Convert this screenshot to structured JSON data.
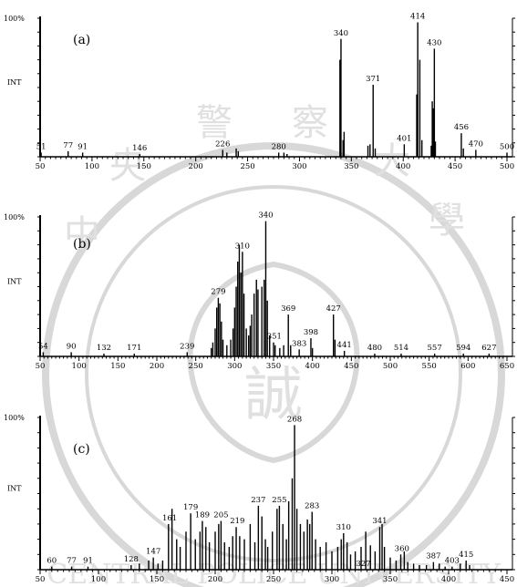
{
  "watermark": {
    "chars": [
      "中",
      "央",
      "警",
      "察",
      "大",
      "學"
    ],
    "center_glyph": "誠",
    "ring_text": "CENTRAL POLICE UNIVERSITY",
    "color": "#d8d8d8"
  },
  "chart_data": [
    {
      "type": "bar",
      "panel_label": "(a)",
      "ytop_label": "100%",
      "ymid_label": "INT",
      "xlim": [
        50,
        500
      ],
      "ylim": [
        0,
        100
      ],
      "xticks": [
        "50",
        "100",
        "150",
        "200",
        "250",
        "300",
        "350",
        "400",
        "450",
        "500"
      ],
      "peaks": [
        [
          51,
          3
        ],
        [
          77,
          4
        ],
        [
          91,
          3
        ],
        [
          146,
          2
        ],
        [
          226,
          5
        ],
        [
          230,
          3
        ],
        [
          239,
          6
        ],
        [
          241,
          4
        ],
        [
          280,
          3
        ],
        [
          285,
          3
        ],
        [
          288,
          2
        ],
        [
          339,
          70
        ],
        [
          340,
          85
        ],
        [
          342,
          12
        ],
        [
          343,
          18
        ],
        [
          366,
          8
        ],
        [
          368,
          9
        ],
        [
          371,
          52
        ],
        [
          373,
          6
        ],
        [
          401,
          9
        ],
        [
          413,
          45
        ],
        [
          414,
          97
        ],
        [
          416,
          70
        ],
        [
          418,
          12
        ],
        [
          427,
          8
        ],
        [
          428,
          40
        ],
        [
          429,
          35
        ],
        [
          430,
          78
        ],
        [
          431,
          11
        ],
        [
          456,
          17
        ],
        [
          458,
          6
        ],
        [
          470,
          5
        ],
        [
          500,
          3
        ]
      ],
      "labels": [
        {
          "x": 51,
          "text": "51"
        },
        {
          "x": 77,
          "text": "77"
        },
        {
          "x": 91,
          "text": "91"
        },
        {
          "x": 146,
          "text": "146"
        },
        {
          "x": 226,
          "text": "226"
        },
        {
          "x": 280,
          "text": "280"
        },
        {
          "x": 340,
          "text": "340"
        },
        {
          "x": 371,
          "text": "371"
        },
        {
          "x": 401,
          "text": "401"
        },
        {
          "x": 414,
          "text": "414"
        },
        {
          "x": 430,
          "text": "430"
        },
        {
          "x": 456,
          "text": "456"
        },
        {
          "x": 470,
          "text": "470"
        },
        {
          "x": 500,
          "text": "500"
        }
      ]
    },
    {
      "type": "bar",
      "panel_label": "(b)",
      "ytop_label": "100%",
      "ymid_label": "INT",
      "xlim": [
        50,
        650
      ],
      "ylim": [
        0,
        100
      ],
      "xticks": [
        "50",
        "100",
        "150",
        "200",
        "250",
        "300",
        "350",
        "400",
        "450",
        "500",
        "550",
        "600",
        "650"
      ],
      "peaks": [
        [
          54,
          3
        ],
        [
          90,
          3
        ],
        [
          132,
          2
        ],
        [
          171,
          2
        ],
        [
          239,
          3
        ],
        [
          270,
          6
        ],
        [
          272,
          10
        ],
        [
          275,
          20
        ],
        [
          277,
          35
        ],
        [
          279,
          42
        ],
        [
          281,
          38
        ],
        [
          283,
          25
        ],
        [
          285,
          12
        ],
        [
          290,
          8
        ],
        [
          295,
          12
        ],
        [
          298,
          20
        ],
        [
          300,
          35
        ],
        [
          302,
          50
        ],
        [
          304,
          68
        ],
        [
          306,
          80
        ],
        [
          308,
          60
        ],
        [
          310,
          75
        ],
        [
          312,
          45
        ],
        [
          315,
          20
        ],
        [
          318,
          15
        ],
        [
          320,
          22
        ],
        [
          322,
          30
        ],
        [
          325,
          45
        ],
        [
          328,
          55
        ],
        [
          330,
          48
        ],
        [
          335,
          50
        ],
        [
          338,
          55
        ],
        [
          340,
          97
        ],
        [
          342,
          40
        ],
        [
          345,
          15
        ],
        [
          350,
          10
        ],
        [
          352,
          8
        ],
        [
          358,
          6
        ],
        [
          363,
          8
        ],
        [
          369,
          30
        ],
        [
          372,
          8
        ],
        [
          383,
          5
        ],
        [
          398,
          13
        ],
        [
          400,
          6
        ],
        [
          427,
          30
        ],
        [
          429,
          12
        ],
        [
          441,
          4
        ],
        [
          480,
          2
        ],
        [
          514,
          2
        ],
        [
          557,
          2
        ],
        [
          594,
          2
        ],
        [
          627,
          2
        ]
      ],
      "labels": [
        {
          "x": 54,
          "text": "54"
        },
        {
          "x": 90,
          "text": "90"
        },
        {
          "x": 132,
          "text": "132"
        },
        {
          "x": 171,
          "text": "171"
        },
        {
          "x": 239,
          "text": "239"
        },
        {
          "x": 279,
          "text": "279"
        },
        {
          "x": 310,
          "text": "310"
        },
        {
          "x": 340,
          "text": "340"
        },
        {
          "x": 351,
          "text": "351"
        },
        {
          "x": 369,
          "text": "369"
        },
        {
          "x": 383,
          "text": "383"
        },
        {
          "x": 398,
          "text": "398"
        },
        {
          "x": 427,
          "text": "427"
        },
        {
          "x": 441,
          "text": "441"
        },
        {
          "x": 480,
          "text": "480"
        },
        {
          "x": 514,
          "text": "514"
        },
        {
          "x": 557,
          "text": "557"
        },
        {
          "x": 594,
          "text": "594"
        },
        {
          "x": 627,
          "text": "627"
        }
      ]
    },
    {
      "type": "bar",
      "panel_label": "(c)",
      "ytop_label": "100%",
      "ymid_label": "INT",
      "xlim": [
        50,
        450
      ],
      "ylim": [
        0,
        100
      ],
      "xticks": [
        "50",
        "100",
        "150",
        "200",
        "250",
        "300",
        "350",
        "400",
        "450"
      ],
      "peaks": [
        [
          60,
          2
        ],
        [
          77,
          2
        ],
        [
          91,
          2
        ],
        [
          128,
          3
        ],
        [
          135,
          4
        ],
        [
          143,
          6
        ],
        [
          147,
          8
        ],
        [
          151,
          4
        ],
        [
          155,
          6
        ],
        [
          160,
          30
        ],
        [
          163,
          40
        ],
        [
          167,
          20
        ],
        [
          170,
          15
        ],
        [
          175,
          25
        ],
        [
          179,
          37
        ],
        [
          183,
          20
        ],
        [
          187,
          25
        ],
        [
          189,
          32
        ],
        [
          192,
          28
        ],
        [
          195,
          18
        ],
        [
          200,
          25
        ],
        [
          203,
          30
        ],
        [
          205,
          32
        ],
        [
          208,
          18
        ],
        [
          212,
          15
        ],
        [
          215,
          22
        ],
        [
          218,
          28
        ],
        [
          221,
          22
        ],
        [
          225,
          20
        ],
        [
          230,
          30
        ],
        [
          234,
          18
        ],
        [
          237,
          42
        ],
        [
          240,
          35
        ],
        [
          243,
          20
        ],
        [
          245,
          15
        ],
        [
          249,
          25
        ],
        [
          253,
          40
        ],
        [
          255,
          42
        ],
        [
          258,
          30
        ],
        [
          261,
          20
        ],
        [
          263,
          45
        ],
        [
          266,
          60
        ],
        [
          268,
          95
        ],
        [
          270,
          40
        ],
        [
          273,
          30
        ],
        [
          276,
          25
        ],
        [
          279,
          33
        ],
        [
          281,
          30
        ],
        [
          283,
          38
        ],
        [
          286,
          20
        ],
        [
          290,
          15
        ],
        [
          295,
          18
        ],
        [
          300,
          12
        ],
        [
          305,
          15
        ],
        [
          308,
          20
        ],
        [
          310,
          24
        ],
        [
          313,
          18
        ],
        [
          316,
          10
        ],
        [
          320,
          12
        ],
        [
          325,
          15
        ],
        [
          329,
          25
        ],
        [
          333,
          16
        ],
        [
          337,
          12
        ],
        [
          341,
          28
        ],
        [
          343,
          30
        ],
        [
          345,
          15
        ],
        [
          350,
          8
        ],
        [
          355,
          6
        ],
        [
          359,
          10
        ],
        [
          362,
          12
        ],
        [
          365,
          5
        ],
        [
          370,
          4
        ],
        [
          375,
          3
        ],
        [
          381,
          3
        ],
        [
          387,
          5
        ],
        [
          392,
          4
        ],
        [
          397,
          2
        ],
        [
          403,
          2
        ],
        [
          410,
          4
        ],
        [
          415,
          6
        ],
        [
          418,
          3
        ]
      ],
      "labels": [
        {
          "x": 60,
          "text": "60"
        },
        {
          "x": 77,
          "text": "77"
        },
        {
          "x": 91,
          "text": "91"
        },
        {
          "x": 128,
          "text": "128"
        },
        {
          "x": 147,
          "text": "147"
        },
        {
          "x": 161,
          "text": "161"
        },
        {
          "x": 179,
          "text": "179"
        },
        {
          "x": 189,
          "text": "189"
        },
        {
          "x": 205,
          "text": "205"
        },
        {
          "x": 219,
          "text": "219"
        },
        {
          "x": 237,
          "text": "237"
        },
        {
          "x": 255,
          "text": "255"
        },
        {
          "x": 268,
          "text": "268"
        },
        {
          "x": 283,
          "text": "283"
        },
        {
          "x": 310,
          "text": "310"
        },
        {
          "x": 327,
          "text": "327"
        },
        {
          "x": 341,
          "text": "341"
        },
        {
          "x": 360,
          "text": "360"
        },
        {
          "x": 387,
          "text": "387"
        },
        {
          "x": 403,
          "text": "403"
        },
        {
          "x": 415,
          "text": "415"
        }
      ]
    }
  ]
}
